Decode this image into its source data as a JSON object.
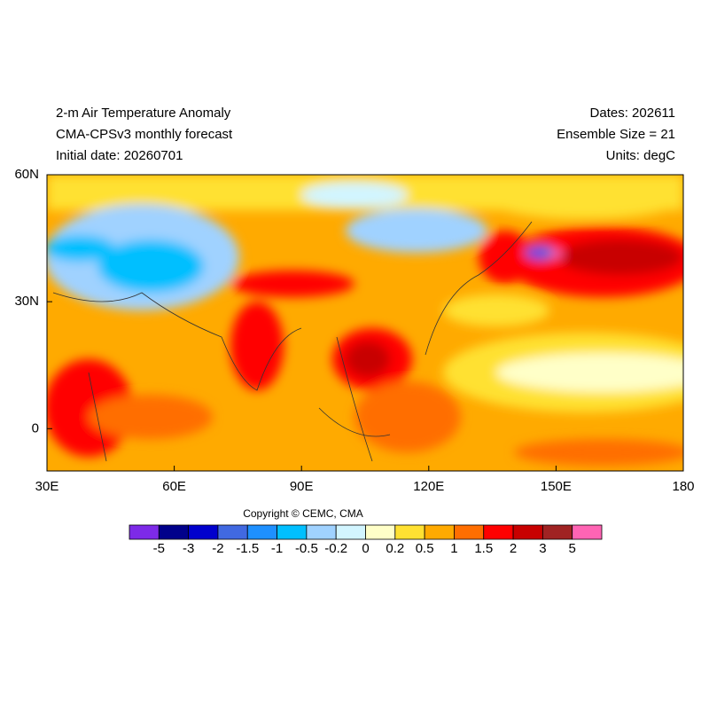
{
  "header": {
    "left": [
      "2-m Air Temperature Anomaly",
      "CMA-CPSv3 monthly forecast",
      "Initial date: 20260701"
    ],
    "right": [
      "Dates: 202611",
      "Ensemble Size = 21",
      "Units: degC"
    ]
  },
  "map": {
    "xlim": [
      30,
      180
    ],
    "ylim": [
      -10,
      60
    ],
    "xticks": [
      {
        "value": 30,
        "label": "30E"
      },
      {
        "value": 60,
        "label": "60E"
      },
      {
        "value": 90,
        "label": "90E"
      },
      {
        "value": 120,
        "label": "120E"
      },
      {
        "value": 150,
        "label": "150E"
      },
      {
        "value": 180,
        "label": "180"
      }
    ],
    "yticks": [
      {
        "value": 0,
        "label": "0"
      },
      {
        "value": 30,
        "label": "30N"
      },
      {
        "value": 60,
        "label": "60N"
      }
    ]
  },
  "copyright": "Copyright © CEMC, CMA",
  "colorbar": {
    "colors": [
      "#7d2ae8",
      "#00008b",
      "#0000cd",
      "#4169e1",
      "#1e90ff",
      "#00bfff",
      "#a0d2ff",
      "#d2f5ff",
      "#ffffc8",
      "#ffe132",
      "#ffaa00",
      "#ff6e00",
      "#ff0000",
      "#c80000",
      "#a02323",
      "#ff64b4"
    ],
    "levels": [
      -5,
      -3,
      -2,
      -1.5,
      -1,
      -0.5,
      -0.2,
      0,
      0.2,
      0.5,
      1,
      1.5,
      2,
      3,
      5
    ]
  }
}
